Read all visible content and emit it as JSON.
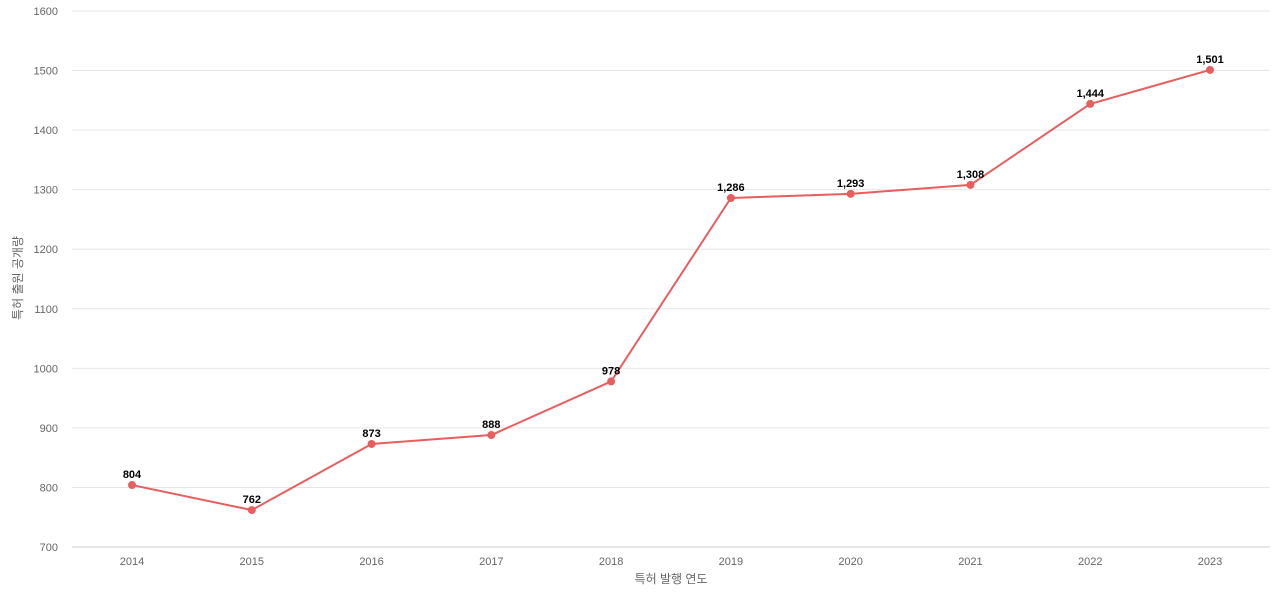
{
  "chart_data": {
    "type": "line",
    "title": "",
    "xlabel": "특허 발행 연도",
    "ylabel": "특허 출원 공개량",
    "categories": [
      "2014",
      "2015",
      "2016",
      "2017",
      "2018",
      "2019",
      "2020",
      "2021",
      "2022",
      "2023"
    ],
    "series": [
      {
        "values": [
          804,
          762,
          873,
          888,
          978,
          1286,
          1293,
          1308,
          1444,
          1501
        ],
        "data_labels": [
          "804",
          "762",
          "873",
          "888",
          "978",
          "1,286",
          "1,293",
          "1,308",
          "1,444",
          "1,501"
        ],
        "color": "#e85d5d"
      }
    ],
    "ylim": [
      700,
      1600
    ],
    "yticks": [
      700,
      800,
      900,
      1000,
      1100,
      1200,
      1300,
      1400,
      1500,
      1600
    ],
    "ytick_labels": [
      "700",
      "800",
      "900",
      "1000",
      "1100",
      "1200",
      "1300",
      "1400",
      "1500",
      "1600"
    ],
    "grid": true,
    "legend": "none"
  },
  "colors": {
    "line": "#e85d5d",
    "grid": "#e6e6e6",
    "tick_text": "#666666",
    "label_text": "#000000"
  }
}
